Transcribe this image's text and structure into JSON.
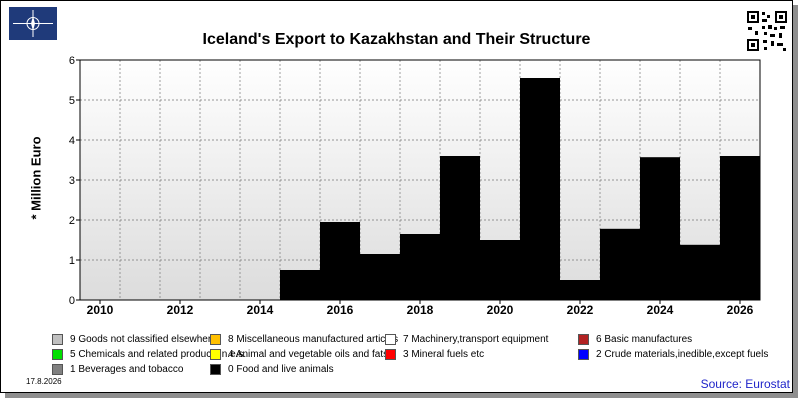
{
  "title": "Iceland's Export to Kazakhstan and Their Structure",
  "ylabel": "* Million Euro",
  "date_stamp": "17.8.2026",
  "source": "Source: Eurostat",
  "chart_data": {
    "type": "bar",
    "stacked": true,
    "x": [
      2010,
      2011,
      2012,
      2013,
      2014,
      2015,
      2016,
      2017,
      2018,
      2019,
      2020,
      2021,
      2022,
      2023,
      2024,
      2025,
      2026
    ],
    "x_tick_labels": [
      "2010",
      "2012",
      "2014",
      "2016",
      "2018",
      "2020",
      "2022",
      "2024",
      "2026"
    ],
    "y_tick_labels": [
      "0",
      "1",
      "2",
      "3",
      "4",
      "5",
      "6"
    ],
    "ylim": [
      0,
      6
    ],
    "grid": true,
    "series": [
      {
        "name": "0 Food and live animals",
        "color": "#000000",
        "values": [
          0,
          0,
          0,
          0,
          0,
          0.75,
          1.95,
          1.15,
          1.65,
          3.6,
          1.5,
          5.55,
          0.5,
          1.78,
          3.57,
          1.38,
          3.6
        ]
      }
    ]
  },
  "legend": [
    {
      "label": "9 Goods not classified elsewhere",
      "color": "#c0c0c0"
    },
    {
      "label": "8 Miscellaneous manufactured articles",
      "color": "#ffc000"
    },
    {
      "label": "7 Machinery,transport equipment",
      "color": "#ffffff"
    },
    {
      "label": "6 Basic manufactures",
      "color": "#b22222"
    },
    {
      "label": "5 Chemicals and related products,n.e.s.",
      "color": "#00e000"
    },
    {
      "label": "4 Animal and vegetable oils and fats",
      "color": "#ffff00"
    },
    {
      "label": "3 Mineral fuels etc",
      "color": "#ff0000"
    },
    {
      "label": "2 Crude materials,inedible,except fuels",
      "color": "#0000ff"
    },
    {
      "label": "1 Beverages and tobacco",
      "color": "#808080"
    },
    {
      "label": "0 Food and live animals",
      "color": "#000000"
    }
  ]
}
